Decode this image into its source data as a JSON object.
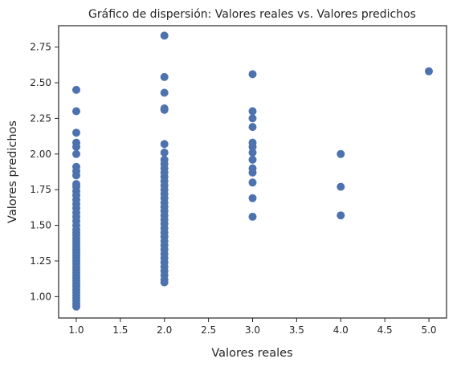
{
  "chart_data": {
    "type": "scatter",
    "title": "Gráfico de dispersión: Valores reales vs. Valores predichos",
    "xlabel": "Valores reales",
    "ylabel": "Valores predichos",
    "xlim": [
      0.8,
      5.2
    ],
    "ylim": [
      0.85,
      2.9
    ],
    "x_ticks": [
      1.0,
      1.5,
      2.0,
      2.5,
      3.0,
      3.5,
      4.0,
      4.5,
      5.0
    ],
    "x_tick_labels": [
      "1.0",
      "1.5",
      "2.0",
      "2.5",
      "3.0",
      "3.5",
      "4.0",
      "4.5",
      "5.0"
    ],
    "y_ticks": [
      1.0,
      1.25,
      1.5,
      1.75,
      2.0,
      2.25,
      2.5,
      2.75
    ],
    "y_tick_labels": [
      "1.00",
      "1.25",
      "1.50",
      "1.75",
      "2.00",
      "2.25",
      "2.50",
      "2.75"
    ],
    "grid": false,
    "marker_color": "#4c72b0",
    "points": [
      [
        1,
        0.93
      ],
      [
        1,
        0.95
      ],
      [
        1,
        0.97
      ],
      [
        1,
        0.99
      ],
      [
        1,
        1.01
      ],
      [
        1,
        1.03
      ],
      [
        1,
        1.05
      ],
      [
        1,
        1.07
      ],
      [
        1,
        1.09
      ],
      [
        1,
        1.11
      ],
      [
        1,
        1.13
      ],
      [
        1,
        1.15
      ],
      [
        1,
        1.17
      ],
      [
        1,
        1.19
      ],
      [
        1,
        1.21
      ],
      [
        1,
        1.23
      ],
      [
        1,
        1.25
      ],
      [
        1,
        1.27
      ],
      [
        1,
        1.29
      ],
      [
        1,
        1.31
      ],
      [
        1,
        1.33
      ],
      [
        1,
        1.35
      ],
      [
        1,
        1.37
      ],
      [
        1,
        1.39
      ],
      [
        1,
        1.41
      ],
      [
        1,
        1.43
      ],
      [
        1,
        1.45
      ],
      [
        1,
        1.47
      ],
      [
        1,
        1.5
      ],
      [
        1,
        1.53
      ],
      [
        1,
        1.56
      ],
      [
        1,
        1.59
      ],
      [
        1,
        1.62
      ],
      [
        1,
        1.65
      ],
      [
        1,
        1.68
      ],
      [
        1,
        1.71
      ],
      [
        1,
        1.74
      ],
      [
        1,
        1.77
      ],
      [
        1,
        1.79
      ],
      [
        1,
        1.85
      ],
      [
        1,
        1.88
      ],
      [
        1,
        1.91
      ],
      [
        1,
        2.0
      ],
      [
        1,
        2.05
      ],
      [
        1,
        2.08
      ],
      [
        1,
        2.15
      ],
      [
        1,
        2.3
      ],
      [
        1,
        2.45
      ],
      [
        2,
        1.1
      ],
      [
        2,
        1.12
      ],
      [
        2,
        1.15
      ],
      [
        2,
        1.18
      ],
      [
        2,
        1.21
      ],
      [
        2,
        1.24
      ],
      [
        2,
        1.27
      ],
      [
        2,
        1.3
      ],
      [
        2,
        1.33
      ],
      [
        2,
        1.36
      ],
      [
        2,
        1.39
      ],
      [
        2,
        1.42
      ],
      [
        2,
        1.45
      ],
      [
        2,
        1.48
      ],
      [
        2,
        1.51
      ],
      [
        2,
        1.54
      ],
      [
        2,
        1.57
      ],
      [
        2,
        1.6
      ],
      [
        2,
        1.63
      ],
      [
        2,
        1.66
      ],
      [
        2,
        1.69
      ],
      [
        2,
        1.72
      ],
      [
        2,
        1.75
      ],
      [
        2,
        1.78
      ],
      [
        2,
        1.81
      ],
      [
        2,
        1.84
      ],
      [
        2,
        1.87
      ],
      [
        2,
        1.9
      ],
      [
        2,
        1.93
      ],
      [
        2,
        1.96
      ],
      [
        2,
        2.01
      ],
      [
        2,
        2.07
      ],
      [
        2,
        2.31
      ],
      [
        2,
        2.32
      ],
      [
        2,
        2.43
      ],
      [
        2,
        2.54
      ],
      [
        2,
        2.83
      ],
      [
        3,
        1.56
      ],
      [
        3,
        1.69
      ],
      [
        3,
        1.8
      ],
      [
        3,
        1.87
      ],
      [
        3,
        1.9
      ],
      [
        3,
        1.96
      ],
      [
        3,
        2.01
      ],
      [
        3,
        2.05
      ],
      [
        3,
        2.08
      ],
      [
        3,
        2.19
      ],
      [
        3,
        2.25
      ],
      [
        3,
        2.3
      ],
      [
        3,
        2.56
      ],
      [
        4,
        1.57
      ],
      [
        4,
        1.77
      ],
      [
        4,
        2.0
      ],
      [
        5,
        2.58
      ]
    ]
  }
}
